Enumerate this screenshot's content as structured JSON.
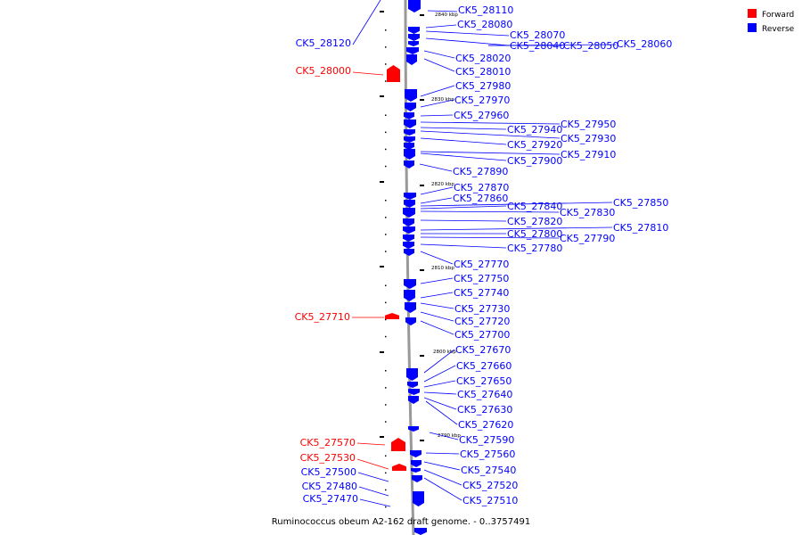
{
  "colors": {
    "forward": "#ff0000",
    "reverse": "#0000ff",
    "backbone": "#999999",
    "text": "#000000"
  },
  "legend": {
    "forward": "Forward",
    "reverse": "Reverse"
  },
  "caption": "Ruminococcus obeum A2-162 draft genome. - 0..3757491",
  "ticks": [
    "2840 kbp",
    "2830 kbp",
    "2820 kbp",
    "2810 kbp",
    "2800 kbp",
    "2790 kbp"
  ],
  "labels": [
    {
      "id": "28110",
      "text": "CK5_28110",
      "strand": "reverse"
    },
    {
      "id": "28080",
      "text": "CK5_28080",
      "strand": "reverse"
    },
    {
      "id": "28070",
      "text": "CK5_28070",
      "strand": "reverse"
    },
    {
      "id": "28040",
      "text": "CK5_28040",
      "strand": "reverse"
    },
    {
      "id": "28050",
      "text": "CK5_28050",
      "strand": "reverse"
    },
    {
      "id": "28060",
      "text": "CK5_28060",
      "strand": "reverse"
    },
    {
      "id": "28120",
      "text": "CK5_28120",
      "strand": "reverse"
    },
    {
      "id": "28020",
      "text": "CK5_28020",
      "strand": "reverse"
    },
    {
      "id": "28000",
      "text": "CK5_28000",
      "strand": "forward"
    },
    {
      "id": "28010",
      "text": "CK5_28010",
      "strand": "reverse"
    },
    {
      "id": "27980",
      "text": "CK5_27980",
      "strand": "reverse"
    },
    {
      "id": "27970",
      "text": "CK5_27970",
      "strand": "reverse"
    },
    {
      "id": "27960",
      "text": "CK5_27960",
      "strand": "reverse"
    },
    {
      "id": "27950",
      "text": "CK5_27950",
      "strand": "reverse"
    },
    {
      "id": "27940",
      "text": "CK5_27940",
      "strand": "reverse"
    },
    {
      "id": "27930",
      "text": "CK5_27930",
      "strand": "reverse"
    },
    {
      "id": "27920",
      "text": "CK5_27920",
      "strand": "reverse"
    },
    {
      "id": "27910",
      "text": "CK5_27910",
      "strand": "reverse"
    },
    {
      "id": "27900",
      "text": "CK5_27900",
      "strand": "reverse"
    },
    {
      "id": "27890",
      "text": "CK5_27890",
      "strand": "reverse"
    },
    {
      "id": "27870",
      "text": "CK5_27870",
      "strand": "reverse"
    },
    {
      "id": "27860",
      "text": "CK5_27860",
      "strand": "reverse"
    },
    {
      "id": "27850",
      "text": "CK5_27850",
      "strand": "reverse"
    },
    {
      "id": "27840",
      "text": "CK5_27840",
      "strand": "reverse"
    },
    {
      "id": "27830",
      "text": "CK5_27830",
      "strand": "reverse"
    },
    {
      "id": "27820",
      "text": "CK5_27820",
      "strand": "reverse"
    },
    {
      "id": "27810",
      "text": "CK5_27810",
      "strand": "reverse"
    },
    {
      "id": "27800",
      "text": "CK5_27800",
      "strand": "reverse"
    },
    {
      "id": "27790",
      "text": "CK5_27790",
      "strand": "reverse"
    },
    {
      "id": "27780",
      "text": "CK5_27780",
      "strand": "reverse"
    },
    {
      "id": "27770",
      "text": "CK5_27770",
      "strand": "reverse"
    },
    {
      "id": "27750",
      "text": "CK5_27750",
      "strand": "reverse"
    },
    {
      "id": "27740",
      "text": "CK5_27740",
      "strand": "reverse"
    },
    {
      "id": "27730",
      "text": "CK5_27730",
      "strand": "reverse"
    },
    {
      "id": "27710",
      "text": "CK5_27710",
      "strand": "forward"
    },
    {
      "id": "27720",
      "text": "CK5_27720",
      "strand": "reverse"
    },
    {
      "id": "27700",
      "text": "CK5_27700",
      "strand": "reverse"
    },
    {
      "id": "27670",
      "text": "CK5_27670",
      "strand": "reverse"
    },
    {
      "id": "27660",
      "text": "CK5_27660",
      "strand": "reverse"
    },
    {
      "id": "27650",
      "text": "CK5_27650",
      "strand": "reverse"
    },
    {
      "id": "27640",
      "text": "CK5_27640",
      "strand": "reverse"
    },
    {
      "id": "27630",
      "text": "CK5_27630",
      "strand": "reverse"
    },
    {
      "id": "27620",
      "text": "CK5_27620",
      "strand": "reverse"
    },
    {
      "id": "27590",
      "text": "CK5_27590",
      "strand": "reverse"
    },
    {
      "id": "27570",
      "text": "CK5_27570",
      "strand": "forward"
    },
    {
      "id": "27560",
      "text": "CK5_27560",
      "strand": "reverse"
    },
    {
      "id": "27530",
      "text": "CK5_27530",
      "strand": "forward"
    },
    {
      "id": "27540",
      "text": "CK5_27540",
      "strand": "reverse"
    },
    {
      "id": "27500",
      "text": "CK5_27500",
      "strand": "reverse"
    },
    {
      "id": "27520",
      "text": "CK5_27520",
      "strand": "reverse"
    },
    {
      "id": "27480",
      "text": "CK5_27480",
      "strand": "reverse"
    },
    {
      "id": "27510",
      "text": "CK5_27510",
      "strand": "reverse"
    },
    {
      "id": "27470",
      "text": "CK5_27470",
      "strand": "reverse"
    }
  ]
}
